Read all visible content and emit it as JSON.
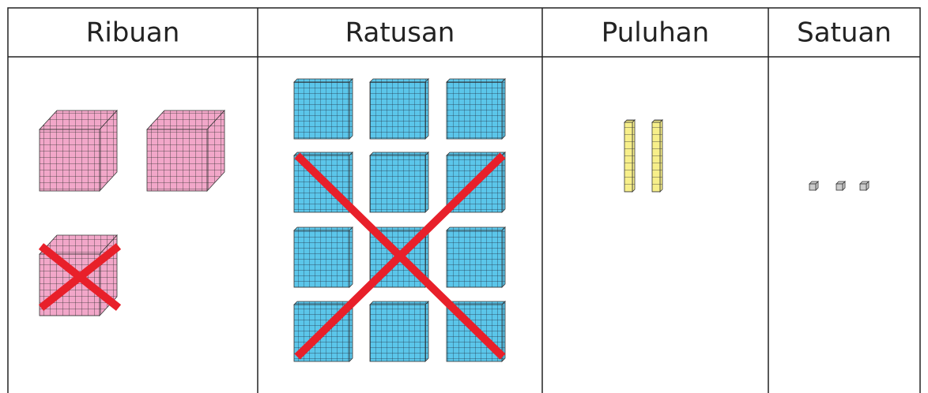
{
  "table": {
    "headers": [
      "Ribuan",
      "Ratusan",
      "Puluhan",
      "Satuan"
    ]
  }
}
